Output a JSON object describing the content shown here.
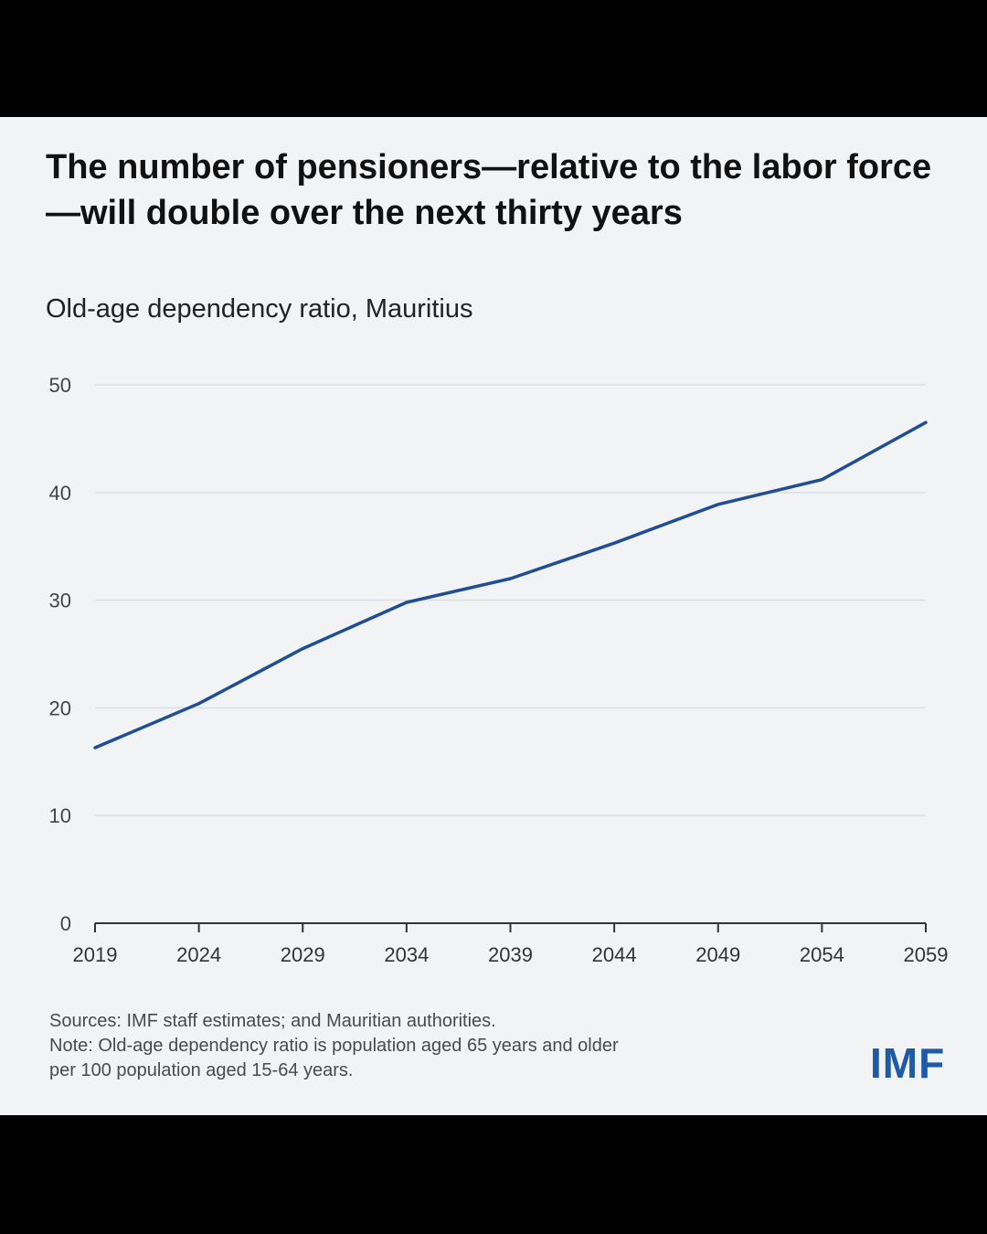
{
  "title": "The number of pensioners—relative to the labor force—will double over the next thirty years",
  "subtitle": "Old-age dependency ratio, Mauritius",
  "sources": "Sources: IMF staff estimates; and Mauritian authorities.",
  "note_line1": "Note: Old-age dependency ratio is population aged 65 years and older",
  "note_line2": "per 100 population aged 15-64 years.",
  "logo": "IMF",
  "colors": {
    "line": "#1f4e96",
    "grid": "#dcdfe4",
    "axis": "#333333",
    "logo": "#1f5aa6"
  },
  "chart_data": {
    "type": "line",
    "title": "The number of pensioners—relative to the labor force—will double over the next thirty years",
    "subtitle": "Old-age dependency ratio, Mauritius",
    "xlabel": "",
    "ylabel": "",
    "x": [
      2019,
      2024,
      2029,
      2034,
      2039,
      2044,
      2049,
      2054,
      2059
    ],
    "xticks": [
      "2019",
      "2024",
      "2029",
      "2034",
      "2039",
      "2044",
      "2049",
      "2054",
      "2059"
    ],
    "yticks": [
      "0",
      "10",
      "20",
      "30",
      "40",
      "50"
    ],
    "ylim": [
      0,
      50
    ],
    "xlim": [
      2019,
      2059
    ],
    "grid": true,
    "series": [
      {
        "name": "Old-age dependency ratio",
        "values": [
          16.3,
          20.4,
          25.5,
          29.8,
          32.0,
          35.3,
          38.9,
          41.2,
          46.5
        ]
      }
    ]
  }
}
